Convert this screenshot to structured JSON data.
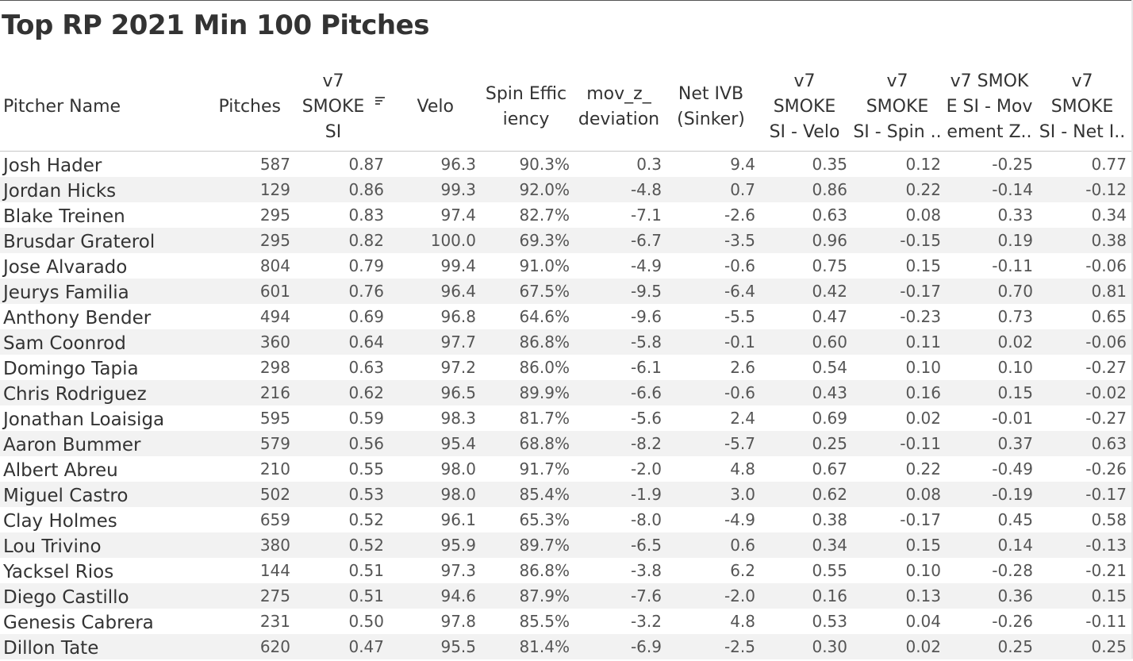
{
  "title": "Top RP 2021 Min 100 Pitches",
  "columns": [
    {
      "key": "name",
      "label": "Pitcher Name"
    },
    {
      "key": "pitches",
      "label": "Pitches"
    },
    {
      "key": "smoke",
      "label": "v7\nSMOKE\nSI",
      "sorted": true
    },
    {
      "key": "velo",
      "label": "Velo"
    },
    {
      "key": "spin_eff",
      "label": "Spin Effic\niency"
    },
    {
      "key": "movz",
      "label": "mov_z_\ndeviation"
    },
    {
      "key": "ivb",
      "label": "Net IVB\n(Sinker)"
    },
    {
      "key": "s_velo",
      "label": "v7\nSMOKE\nSI - Velo"
    },
    {
      "key": "s_spin",
      "label": "v7\nSMOKE\nSI - Spin .."
    },
    {
      "key": "s_movz",
      "label": "v7 SMOK\nE SI - Mov\nement Z.."
    },
    {
      "key": "s_ivb",
      "label": "v7\nSMOKE\nSI - Net I.."
    }
  ],
  "sort_icon": "sort-descending-icon",
  "rows": [
    [
      "Josh Hader",
      "587",
      "0.87",
      "96.3",
      "90.3%",
      "0.3",
      "9.4",
      "0.35",
      "0.12",
      "-0.25",
      "0.77"
    ],
    [
      "Jordan Hicks",
      "129",
      "0.86",
      "99.3",
      "92.0%",
      "-4.8",
      "0.7",
      "0.86",
      "0.22",
      "-0.14",
      "-0.12"
    ],
    [
      "Blake Treinen",
      "295",
      "0.83",
      "97.4",
      "82.7%",
      "-7.1",
      "-2.6",
      "0.63",
      "0.08",
      "0.33",
      "0.34"
    ],
    [
      "Brusdar Graterol",
      "295",
      "0.82",
      "100.0",
      "69.3%",
      "-6.7",
      "-3.5",
      "0.96",
      "-0.15",
      "0.19",
      "0.38"
    ],
    [
      "Jose Alvarado",
      "804",
      "0.79",
      "99.4",
      "91.0%",
      "-4.9",
      "-0.6",
      "0.75",
      "0.15",
      "-0.11",
      "-0.06"
    ],
    [
      "Jeurys Familia",
      "601",
      "0.76",
      "96.4",
      "67.5%",
      "-9.5",
      "-6.4",
      "0.42",
      "-0.17",
      "0.70",
      "0.81"
    ],
    [
      "Anthony Bender",
      "494",
      "0.69",
      "96.8",
      "64.6%",
      "-9.6",
      "-5.5",
      "0.47",
      "-0.23",
      "0.73",
      "0.65"
    ],
    [
      "Sam Coonrod",
      "360",
      "0.64",
      "97.7",
      "86.8%",
      "-5.8",
      "-0.1",
      "0.60",
      "0.11",
      "0.02",
      "-0.06"
    ],
    [
      "Domingo Tapia",
      "298",
      "0.63",
      "97.2",
      "86.0%",
      "-6.1",
      "2.6",
      "0.54",
      "0.10",
      "0.10",
      "-0.27"
    ],
    [
      "Chris Rodriguez",
      "216",
      "0.62",
      "96.5",
      "89.9%",
      "-6.6",
      "-0.6",
      "0.43",
      "0.16",
      "0.15",
      "-0.02"
    ],
    [
      "Jonathan Loaisiga",
      "595",
      "0.59",
      "98.3",
      "81.7%",
      "-5.6",
      "2.4",
      "0.69",
      "0.02",
      "-0.01",
      "-0.27"
    ],
    [
      "Aaron Bummer",
      "579",
      "0.56",
      "95.4",
      "68.8%",
      "-8.2",
      "-5.7",
      "0.25",
      "-0.11",
      "0.37",
      "0.63"
    ],
    [
      "Albert Abreu",
      "210",
      "0.55",
      "98.0",
      "91.7%",
      "-2.0",
      "4.8",
      "0.67",
      "0.22",
      "-0.49",
      "-0.26"
    ],
    [
      "Miguel Castro",
      "502",
      "0.53",
      "98.0",
      "85.4%",
      "-1.9",
      "3.0",
      "0.62",
      "0.08",
      "-0.19",
      "-0.17"
    ],
    [
      "Clay Holmes",
      "659",
      "0.52",
      "96.1",
      "65.3%",
      "-8.0",
      "-4.9",
      "0.38",
      "-0.17",
      "0.45",
      "0.58"
    ],
    [
      "Lou Trivino",
      "380",
      "0.52",
      "95.9",
      "89.7%",
      "-6.5",
      "0.6",
      "0.34",
      "0.15",
      "0.14",
      "-0.13"
    ],
    [
      "Yacksel Rios",
      "144",
      "0.51",
      "97.3",
      "86.8%",
      "-3.8",
      "6.2",
      "0.55",
      "0.10",
      "-0.28",
      "-0.21"
    ],
    [
      "Diego Castillo",
      "275",
      "0.51",
      "94.6",
      "87.9%",
      "-7.6",
      "-2.0",
      "0.16",
      "0.13",
      "0.36",
      "0.15"
    ],
    [
      "Genesis Cabrera",
      "231",
      "0.50",
      "97.8",
      "85.5%",
      "-3.2",
      "4.8",
      "0.53",
      "0.04",
      "-0.26",
      "-0.11"
    ],
    [
      "Dillon Tate",
      "620",
      "0.47",
      "95.5",
      "81.4%",
      "-6.9",
      "-2.5",
      "0.30",
      "0.02",
      "0.25",
      "0.25"
    ]
  ]
}
